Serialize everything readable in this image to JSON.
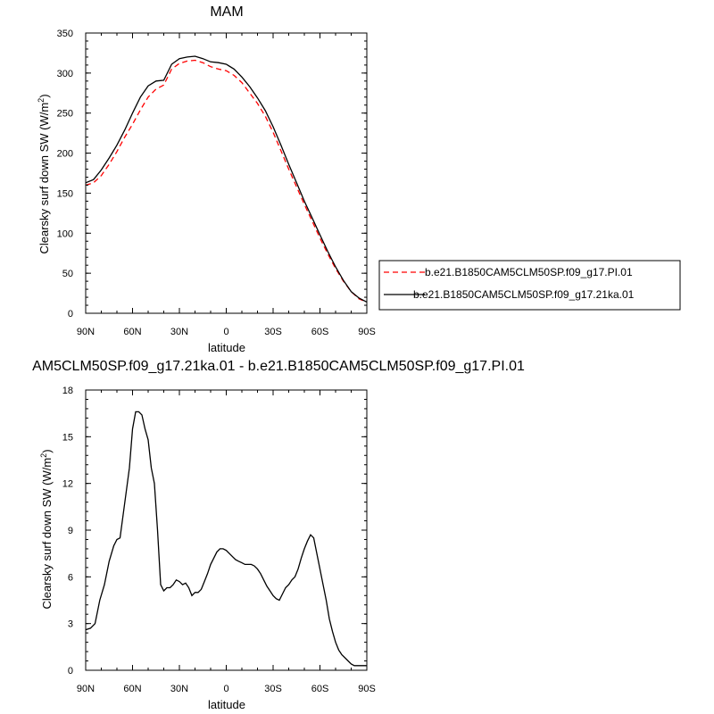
{
  "chart_data": [
    {
      "type": "line",
      "title": "MAM",
      "xlabel": "latitude",
      "ylabel": "Clearsky surf down SW (W/m",
      "ylabel_sup": "2",
      "ylabel_end": ")",
      "xlim": [
        -90,
        90
      ],
      "ylim": [
        0,
        350
      ],
      "x_ticks": [
        -90,
        -60,
        -30,
        0,
        30,
        60,
        90
      ],
      "x_tick_labels": [
        "90N",
        "60N",
        "30N",
        "0",
        "30S",
        "60S",
        "90S"
      ],
      "y_ticks": [
        0,
        50,
        100,
        150,
        200,
        250,
        300,
        350
      ],
      "y_tick_labels": [
        "0",
        "50",
        "100",
        "150",
        "200",
        "250",
        "300",
        "350"
      ],
      "legend_position": "right",
      "series": [
        {
          "name": "b.e21.B1850CAM5CLM50SP.f09_g17.PI.01",
          "color": "#ff0000",
          "dash": "dashed",
          "x": [
            -90,
            -85,
            -80,
            -75,
            -70,
            -65,
            -60,
            -55,
            -50,
            -45,
            -40,
            -35,
            -30,
            -25,
            -20,
            -15,
            -10,
            -5,
            0,
            5,
            10,
            15,
            20,
            25,
            30,
            35,
            40,
            45,
            50,
            55,
            60,
            65,
            70,
            75,
            80,
            85,
            90
          ],
          "y": [
            160,
            163,
            172,
            186,
            202,
            220,
            236,
            254,
            270,
            280,
            285,
            305,
            312,
            315,
            316,
            313,
            308,
            305,
            303,
            297,
            288,
            275,
            262,
            246,
            226,
            203,
            180,
            158,
            136,
            115,
            94,
            74,
            56,
            40,
            27,
            18,
            14
          ]
        },
        {
          "name": "b.e21.B1850CAM5CLM50SP.f09_g17.21ka.01",
          "color": "#000000",
          "dash": "solid",
          "x": [
            -90,
            -85,
            -80,
            -75,
            -70,
            -65,
            -60,
            -55,
            -50,
            -45,
            -40,
            -35,
            -30,
            -25,
            -20,
            -15,
            -10,
            -5,
            0,
            5,
            10,
            15,
            20,
            25,
            30,
            35,
            40,
            45,
            50,
            55,
            60,
            65,
            70,
            75,
            80,
            85,
            90
          ],
          "y": [
            163,
            167,
            179,
            194,
            210,
            229,
            250,
            270,
            284,
            290,
            291,
            311,
            318,
            320,
            321,
            318,
            314,
            313,
            311,
            305,
            295,
            283,
            269,
            253,
            233,
            210,
            186,
            163,
            140,
            119,
            98,
            77,
            58,
            41,
            27,
            19,
            14
          ]
        }
      ]
    },
    {
      "type": "line",
      "title": "AM5CLM50SP.f09_g17.21ka.01 - b.e21.B1850CAM5CLM50SP.f09_g17.PI.01",
      "xlabel": "latitude",
      "ylabel": "Clearsky surf down SW (W/m",
      "ylabel_sup": "2",
      "ylabel_end": ")",
      "xlim": [
        -90,
        90
      ],
      "ylim": [
        0,
        18
      ],
      "x_ticks": [
        -90,
        -60,
        -30,
        0,
        30,
        60,
        90
      ],
      "x_tick_labels": [
        "90N",
        "60N",
        "30N",
        "0",
        "30S",
        "60S",
        "90S"
      ],
      "y_ticks": [
        0,
        3,
        6,
        9,
        12,
        15,
        18
      ],
      "y_tick_labels": [
        "0",
        "3",
        "6",
        "9",
        "12",
        "15",
        "18"
      ],
      "series": [
        {
          "color": "#000000",
          "dash": "solid",
          "x": [
            -90,
            -87,
            -84,
            -81,
            -78,
            -75,
            -72,
            -70,
            -68,
            -66,
            -64,
            -62,
            -60,
            -58,
            -56,
            -54,
            -52,
            -50,
            -48,
            -46,
            -44,
            -42,
            -40,
            -38,
            -36,
            -34,
            -32,
            -30,
            -28,
            -26,
            -24,
            -22,
            -20,
            -18,
            -16,
            -14,
            -12,
            -10,
            -8,
            -6,
            -4,
            -2,
            0,
            2,
            4,
            6,
            8,
            10,
            12,
            14,
            16,
            18,
            20,
            22,
            24,
            26,
            28,
            30,
            32,
            34,
            36,
            38,
            40,
            42,
            44,
            46,
            48,
            50,
            52,
            54,
            56,
            58,
            60,
            62,
            64,
            66,
            68,
            70,
            72,
            74,
            76,
            78,
            80,
            82,
            84,
            86,
            88,
            90
          ],
          "y": [
            2.6,
            2.7,
            3.0,
            4.5,
            5.5,
            7.0,
            8.0,
            8.4,
            8.5,
            10.0,
            11.5,
            13.0,
            15.5,
            16.6,
            16.6,
            16.4,
            15.5,
            14.8,
            13.0,
            12.0,
            9.0,
            5.5,
            5.1,
            5.3,
            5.3,
            5.5,
            5.8,
            5.7,
            5.5,
            5.6,
            5.3,
            4.8,
            5.0,
            5.0,
            5.2,
            5.7,
            6.2,
            6.8,
            7.2,
            7.6,
            7.8,
            7.8,
            7.7,
            7.5,
            7.3,
            7.1,
            7.0,
            6.9,
            6.8,
            6.8,
            6.8,
            6.7,
            6.5,
            6.2,
            5.8,
            5.4,
            5.1,
            4.8,
            4.6,
            4.5,
            4.9,
            5.3,
            5.5,
            5.8,
            6.0,
            6.5,
            7.2,
            7.8,
            8.3,
            8.7,
            8.5,
            7.5,
            6.5,
            5.5,
            4.5,
            3.3,
            2.5,
            1.8,
            1.3,
            1.0,
            0.8,
            0.6,
            0.4,
            0.3,
            0.3,
            0.3,
            0.3,
            0.3
          ]
        }
      ]
    }
  ]
}
